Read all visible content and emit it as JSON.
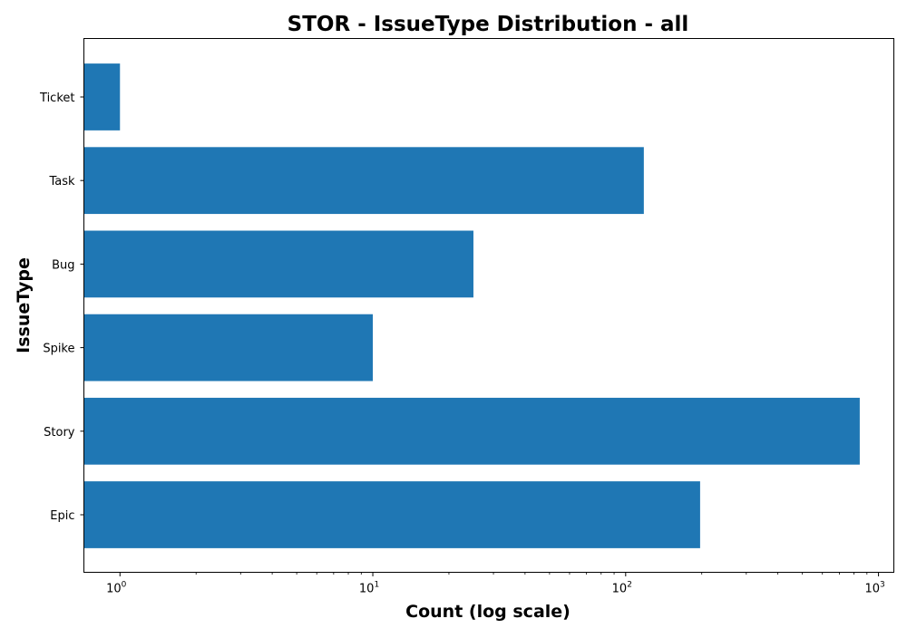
{
  "chart_data": {
    "type": "bar",
    "orientation": "horizontal",
    "title": "STOR - IssueType Distribution - all",
    "xlabel": "Count (log scale)",
    "ylabel": "IssueType",
    "x_scale": "log",
    "xlim": [
      0.72,
      1150
    ],
    "x_ticks": [
      {
        "value": 1,
        "base": "10",
        "exp": "0"
      },
      {
        "value": 10,
        "base": "10",
        "exp": "1"
      },
      {
        "value": 100,
        "base": "10",
        "exp": "2"
      },
      {
        "value": 1000,
        "base": "10",
        "exp": "3"
      }
    ],
    "categories": [
      "Ticket",
      "Task",
      "Bug",
      "Spike",
      "Story",
      "Epic"
    ],
    "values": [
      1,
      118,
      25,
      10,
      843,
      197
    ],
    "bar_color": "#1f77b4",
    "grid": false,
    "legend": false
  }
}
